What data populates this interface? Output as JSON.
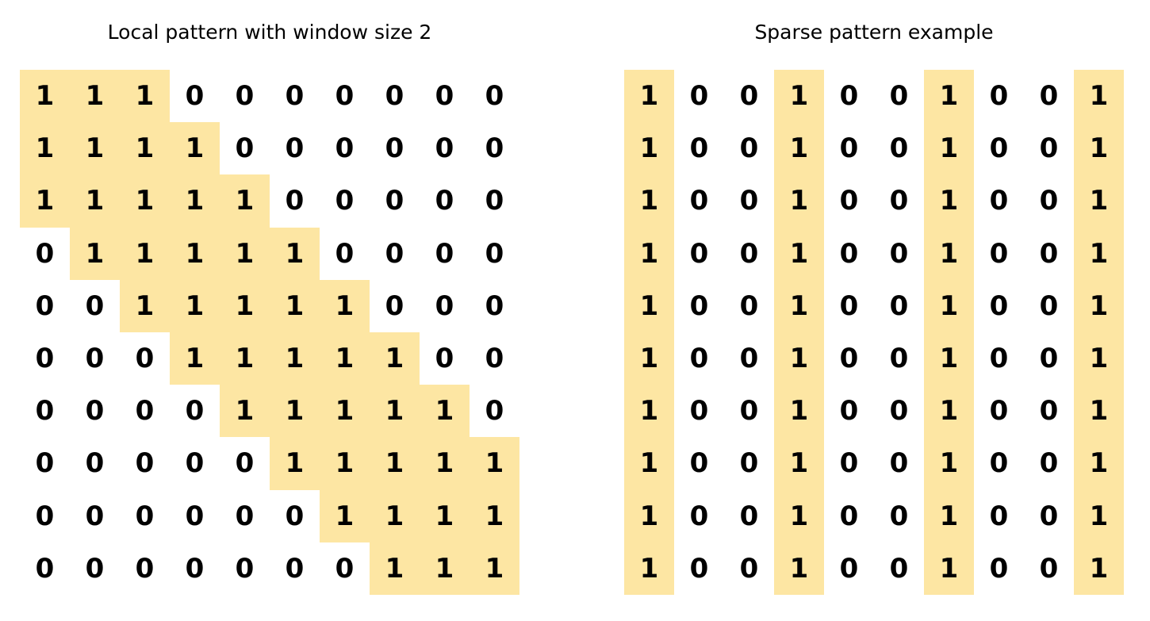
{
  "highlight_color": "#fde6a3",
  "panels": [
    {
      "id": "local",
      "title": "Local pattern with window size 2",
      "matrix": [
        [
          1,
          1,
          1,
          0,
          0,
          0,
          0,
          0,
          0,
          0
        ],
        [
          1,
          1,
          1,
          1,
          0,
          0,
          0,
          0,
          0,
          0
        ],
        [
          1,
          1,
          1,
          1,
          1,
          0,
          0,
          0,
          0,
          0
        ],
        [
          0,
          1,
          1,
          1,
          1,
          1,
          0,
          0,
          0,
          0
        ],
        [
          0,
          0,
          1,
          1,
          1,
          1,
          1,
          0,
          0,
          0
        ],
        [
          0,
          0,
          0,
          1,
          1,
          1,
          1,
          1,
          0,
          0
        ],
        [
          0,
          0,
          0,
          0,
          1,
          1,
          1,
          1,
          1,
          0
        ],
        [
          0,
          0,
          0,
          0,
          0,
          1,
          1,
          1,
          1,
          1
        ],
        [
          0,
          0,
          0,
          0,
          0,
          0,
          1,
          1,
          1,
          1
        ],
        [
          0,
          0,
          0,
          0,
          0,
          0,
          0,
          1,
          1,
          1
        ]
      ]
    },
    {
      "id": "sparse",
      "title": "Sparse pattern example",
      "matrix": [
        [
          1,
          0,
          0,
          1,
          0,
          0,
          1,
          0,
          0,
          1
        ],
        [
          1,
          0,
          0,
          1,
          0,
          0,
          1,
          0,
          0,
          1
        ],
        [
          1,
          0,
          0,
          1,
          0,
          0,
          1,
          0,
          0,
          1
        ],
        [
          1,
          0,
          0,
          1,
          0,
          0,
          1,
          0,
          0,
          1
        ],
        [
          1,
          0,
          0,
          1,
          0,
          0,
          1,
          0,
          0,
          1
        ],
        [
          1,
          0,
          0,
          1,
          0,
          0,
          1,
          0,
          0,
          1
        ],
        [
          1,
          0,
          0,
          1,
          0,
          0,
          1,
          0,
          0,
          1
        ],
        [
          1,
          0,
          0,
          1,
          0,
          0,
          1,
          0,
          0,
          1
        ],
        [
          1,
          0,
          0,
          1,
          0,
          0,
          1,
          0,
          0,
          1
        ],
        [
          1,
          0,
          0,
          1,
          0,
          0,
          1,
          0,
          0,
          1
        ]
      ]
    }
  ]
}
